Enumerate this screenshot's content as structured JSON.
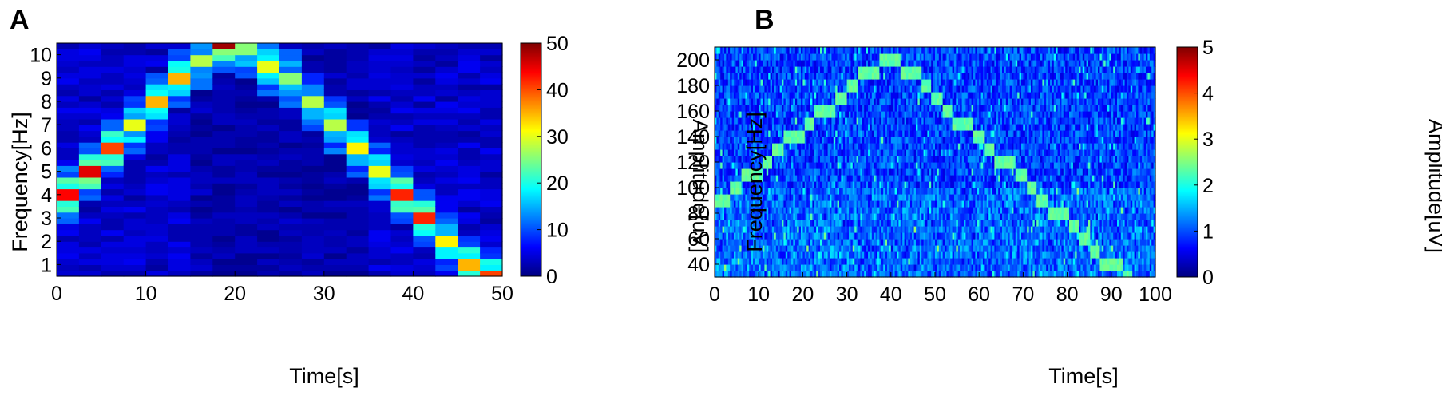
{
  "chart_data": [
    {
      "panel_label": "A",
      "type": "heatmap",
      "title": "",
      "xlabel": "Time[s]",
      "ylabel": "Frequency[Hz]",
      "colorbar_label": "Amplitude[uV]",
      "colormap": "jet",
      "xlim": [
        0,
        50
      ],
      "ylim": [
        0.5,
        10.5
      ],
      "clim": [
        0,
        50
      ],
      "x_ticks": [
        0,
        10,
        20,
        30,
        40,
        50
      ],
      "y_ticks": [
        1,
        2,
        3,
        4,
        5,
        6,
        7,
        8,
        9,
        10
      ],
      "colorbar_ticks": [
        0,
        10,
        20,
        30,
        40,
        50
      ],
      "peak_track": {
        "time_bin_centers": [
          1.25,
          3.75,
          6.25,
          8.75,
          11.25,
          13.75,
          16.25,
          18.75,
          21.25,
          23.75,
          26.25,
          28.75,
          31.25,
          33.75,
          36.25,
          38.75,
          41.25,
          43.75,
          46.25,
          48.75
        ],
        "frequency_hz": [
          4,
          5,
          6,
          7,
          8,
          9,
          9.75,
          10.5,
          10.25,
          9.5,
          9,
          8,
          7,
          6,
          5,
          4,
          3,
          2,
          1,
          0.5
        ],
        "amplitude_uv": [
          43,
          45,
          40,
          30,
          35,
          35,
          28,
          48,
          25,
          30,
          25,
          28,
          28,
          32,
          30,
          42,
          42,
          32,
          35,
          40
        ]
      }
    },
    {
      "panel_label": "B",
      "type": "heatmap",
      "title": "",
      "xlabel": "Time[s]",
      "ylabel": "Frequency[Hz]",
      "colorbar_label": "Amplitude[uV]",
      "colormap": "jet",
      "xlim": [
        0,
        100
      ],
      "ylim": [
        30,
        210
      ],
      "clim": [
        0,
        5
      ],
      "x_ticks": [
        0,
        10,
        20,
        30,
        40,
        50,
        60,
        70,
        80,
        90,
        100
      ],
      "y_ticks": [
        40,
        60,
        80,
        100,
        120,
        140,
        160,
        180,
        200
      ],
      "colorbar_ticks": [
        0,
        1,
        2,
        3,
        4,
        5
      ],
      "peak_track": {
        "time_s": [
          0,
          40,
          93
        ],
        "frequency_hz": [
          85,
          205,
          30
        ],
        "amplitude_uv": 2.2
      }
    }
  ]
}
